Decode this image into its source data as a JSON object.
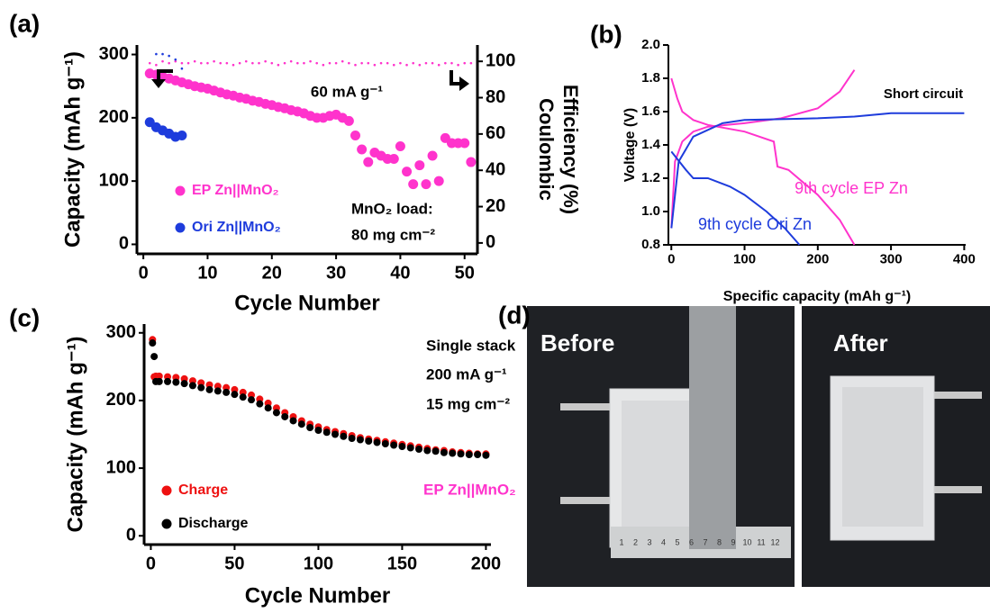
{
  "chart_data": [
    {
      "type": "scatter",
      "label": "(a)",
      "xlabel": "Cycle Number",
      "ylabel": "Capacity (mAh g⁻¹)",
      "y2label": [
        "Coulombic",
        "Efficiency (%)"
      ],
      "xlim": [
        -1,
        52
      ],
      "xticks": [
        0,
        10,
        20,
        30,
        40,
        50
      ],
      "ylim": [
        -15,
        315
      ],
      "yticks": [
        0,
        100,
        200,
        300
      ],
      "y2lim": [
        -6,
        109
      ],
      "y2ticks": [
        0,
        20,
        40,
        60,
        80,
        100
      ],
      "annotations": [
        {
          "text": "60 mA g⁻¹"
        },
        {
          "text": "MnO₂ load:"
        },
        {
          "text": "80 mg cm⁻²"
        }
      ],
      "series": [
        {
          "name": "EP Zn||MnO₂",
          "color": "#ff33cc",
          "x": [
            1,
            2,
            3,
            4,
            5,
            6,
            7,
            8,
            9,
            10,
            11,
            12,
            13,
            14,
            15,
            16,
            17,
            18,
            19,
            20,
            21,
            22,
            23,
            24,
            25,
            26,
            27,
            28,
            29,
            30,
            31,
            32,
            33,
            34,
            35,
            36,
            37,
            38,
            39,
            40,
            41,
            42,
            43,
            44,
            45,
            46,
            47,
            48,
            49,
            50,
            51
          ],
          "values": [
            270,
            268,
            265,
            262,
            259,
            256,
            253,
            250,
            248,
            246,
            243,
            240,
            237,
            235,
            232,
            230,
            227,
            225,
            222,
            220,
            217,
            215,
            212,
            210,
            207,
            203,
            200,
            200,
            203,
            205,
            200,
            195,
            172,
            150,
            130,
            145,
            140,
            135,
            135,
            155,
            115,
            95,
            125,
            95,
            140,
            100,
            168,
            160,
            160,
            160,
            130
          ]
        },
        {
          "name": "Ori Zn||MnO₂",
          "color": "#1e3cdc",
          "x": [
            1,
            2,
            3,
            4,
            5,
            6
          ],
          "values": [
            193,
            185,
            180,
            175,
            170,
            172
          ]
        },
        {
          "color": "#ff33cc",
          "axis": "y2",
          "marker": "dot",
          "x": [
            1,
            2,
            3,
            4,
            5,
            6,
            7,
            8,
            9,
            10,
            11,
            12,
            13,
            14,
            15,
            16,
            17,
            18,
            19,
            20,
            21,
            22,
            23,
            24,
            25,
            26,
            27,
            28,
            29,
            30,
            31,
            32,
            33,
            34,
            35,
            36,
            37,
            38,
            39,
            40,
            41,
            42,
            43,
            44,
            45,
            46,
            47,
            48,
            49,
            50,
            51
          ],
          "values": [
            99,
            98,
            100,
            99,
            100,
            99,
            99,
            100,
            99,
            99,
            100,
            99,
            99,
            98,
            99,
            100,
            99,
            99,
            100,
            99,
            98,
            99,
            100,
            99,
            99,
            100,
            99,
            98,
            99,
            99,
            100,
            99,
            98,
            99,
            99,
            98,
            99,
            99,
            98,
            99,
            98,
            99,
            98,
            99,
            99,
            98,
            99,
            99,
            98,
            99,
            99
          ]
        },
        {
          "color": "#1e3cdc",
          "axis": "y2",
          "marker": "dot",
          "x": [
            2,
            3,
            4,
            5,
            6
          ],
          "values": [
            104,
            104,
            103,
            101,
            96
          ]
        }
      ]
    },
    {
      "type": "line",
      "label": "(b)",
      "xlabel": "Specific capacity (mAh g⁻¹)",
      "ylabel": "Voltage (V)",
      "xlim": [
        -4,
        402
      ],
      "xticks": [
        0,
        100,
        200,
        300,
        400
      ],
      "ylim": [
        0.8,
        2.0
      ],
      "yticks": [
        0.8,
        {
          "value": 1.0,
          "label": "1.0"
        },
        1.2,
        1.4,
        1.6,
        1.8,
        {
          "value": 2.0,
          "label": "2.0"
        }
      ],
      "annotations": [
        {
          "text": "Short circuit"
        }
      ],
      "series": [
        {
          "name": "9th cycle EP Zn",
          "color": "#ff33cc",
          "x": [
            0,
            5,
            15,
            30,
            50,
            100,
            150,
            200,
            230,
            250
          ],
          "values": [
            0.9,
            1.3,
            1.42,
            1.48,
            1.51,
            1.53,
            1.56,
            1.62,
            1.72,
            1.85
          ]
        },
        {
          "color": "#ff33cc",
          "x": [
            0,
            8,
            15,
            30,
            50,
            100,
            140,
            145,
            160,
            200,
            230,
            250
          ],
          "values": [
            1.8,
            1.68,
            1.6,
            1.55,
            1.52,
            1.48,
            1.42,
            1.27,
            1.25,
            1.1,
            0.95,
            0.8
          ]
        },
        {
          "name": "9th cycle Ori Zn",
          "color": "#1e3cdc",
          "x": [
            0,
            20,
            30,
            50,
            80,
            100,
            130,
            155,
            175
          ],
          "values": [
            1.36,
            1.25,
            1.2,
            1.2,
            1.15,
            1.1,
            1.0,
            0.9,
            0.8
          ]
        },
        {
          "color": "#1e3cdc",
          "x": [
            0,
            10,
            30,
            70,
            100,
            200,
            250,
            300,
            400
          ],
          "values": [
            0.9,
            1.3,
            1.45,
            1.53,
            1.55,
            1.56,
            1.57,
            1.59,
            1.59
          ]
        }
      ]
    },
    {
      "type": "scatter",
      "label": "(c)",
      "xlabel": "Cycle Number",
      "ylabel": "Capacity (mAh g⁻¹)",
      "xlim": [
        -4,
        203
      ],
      "xticks": [
        0,
        50,
        100,
        150,
        200
      ],
      "ylim": [
        -13,
        313
      ],
      "yticks": [
        0,
        100,
        200,
        300
      ],
      "annotations": [
        {
          "text": "Single stack"
        },
        {
          "text": "200 mA g⁻¹"
        },
        {
          "text": "15 mg cm⁻²"
        },
        {
          "text": "EP Zn||MnO₂",
          "color": "#ff33cc"
        }
      ],
      "series": [
        {
          "name": "Charge",
          "color": "#ee1111",
          "x": [
            1,
            2,
            3,
            5,
            10,
            15,
            20,
            25,
            30,
            35,
            40,
            45,
            50,
            55,
            60,
            65,
            70,
            75,
            80,
            85,
            90,
            95,
            100,
            105,
            110,
            115,
            120,
            125,
            130,
            135,
            140,
            145,
            150,
            155,
            160,
            165,
            170,
            175,
            180,
            185,
            190,
            195,
            200
          ],
          "values": [
            290,
            235,
            236,
            236,
            235,
            234,
            232,
            229,
            226,
            223,
            221,
            219,
            216,
            212,
            208,
            202,
            196,
            189,
            182,
            176,
            170,
            165,
            161,
            157,
            154,
            151,
            148,
            145,
            143,
            141,
            139,
            137,
            135,
            133,
            131,
            129,
            127,
            126,
            124,
            123,
            122,
            121,
            121
          ]
        },
        {
          "name": "Discharge",
          "color": "#000000",
          "x": [
            1,
            2,
            3,
            5,
            10,
            15,
            20,
            25,
            30,
            35,
            40,
            45,
            50,
            55,
            60,
            65,
            70,
            75,
            80,
            85,
            90,
            95,
            100,
            105,
            110,
            115,
            120,
            125,
            130,
            135,
            140,
            145,
            150,
            155,
            160,
            165,
            170,
            175,
            180,
            185,
            190,
            195,
            200
          ],
          "values": [
            285,
            265,
            228,
            228,
            228,
            227,
            225,
            222,
            219,
            216,
            214,
            212,
            209,
            205,
            201,
            195,
            189,
            182,
            176,
            170,
            165,
            160,
            156,
            153,
            150,
            147,
            144,
            142,
            140,
            138,
            136,
            134,
            132,
            130,
            128,
            126,
            125,
            123,
            122,
            121,
            120,
            120,
            119
          ]
        }
      ]
    }
  ],
  "photos": {
    "label": "(d)",
    "panels": [
      {
        "title": "Before"
      },
      {
        "title": "After"
      }
    ],
    "ruler": [
      "1",
      "2",
      "3",
      "4",
      "5",
      "6",
      "7",
      "8",
      "9",
      "10",
      "11",
      "12"
    ]
  }
}
